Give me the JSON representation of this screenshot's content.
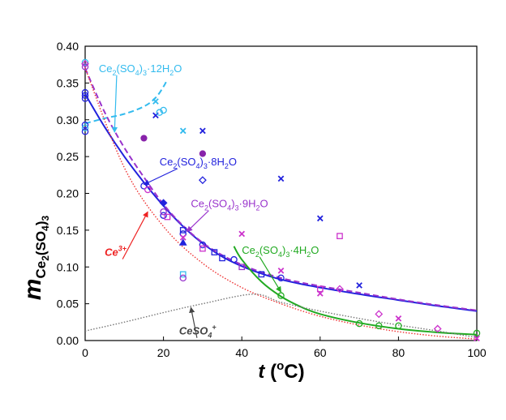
{
  "chart_data": {
    "type": "scatter",
    "xlabel": "t (oC)",
    "xlabel_parts": {
      "main": "t",
      "open": " (",
      "sup": "o",
      "unit": "C)"
    },
    "ylabel_parts": {
      "main": "m",
      "sub1": "Ce",
      "sub2": "2",
      "sub3": "(SO",
      "sub4": "4",
      "sub5": ")",
      "sub6": "3"
    },
    "xlim": [
      0,
      100
    ],
    "ylim": [
      0,
      0.4
    ],
    "xticks": [
      "0",
      "20",
      "40",
      "60",
      "80",
      "100"
    ],
    "yticks": [
      "0.00",
      "0.05",
      "0.10",
      "0.15",
      "0.20",
      "0.25",
      "0.30",
      "0.35",
      "0.40"
    ],
    "grid": false,
    "legend": "none",
    "curves": [
      {
        "id": "12H2O",
        "style": "dashed",
        "color": "#33bbee",
        "x": [
          0,
          5,
          10,
          15,
          18,
          20,
          21
        ],
        "y": [
          0.295,
          0.302,
          0.308,
          0.318,
          0.33,
          0.345,
          0.355
        ]
      },
      {
        "id": "8H2O",
        "style": "solid",
        "color": "#2222dd",
        "x": [
          0,
          5,
          10,
          15,
          20,
          25,
          30,
          35,
          40,
          45,
          50,
          55,
          60,
          70,
          80,
          90,
          100
        ],
        "y": [
          0.335,
          0.29,
          0.25,
          0.215,
          0.183,
          0.155,
          0.132,
          0.114,
          0.101,
          0.091,
          0.083,
          0.077,
          0.072,
          0.063,
          0.055,
          0.047,
          0.04
        ]
      },
      {
        "id": "9H2O",
        "style": "dashed",
        "color": "#9933cc",
        "x": [
          0,
          5,
          10,
          15,
          20,
          25,
          30,
          35,
          40,
          45,
          50,
          55,
          60,
          70,
          80,
          90,
          100
        ],
        "y": [
          0.37,
          0.31,
          0.262,
          0.222,
          0.185,
          0.156,
          0.133,
          0.116,
          0.103,
          0.093,
          0.085,
          0.079,
          0.074,
          0.065,
          0.056,
          0.048,
          0.041
        ]
      },
      {
        "id": "4H2O",
        "style": "solid",
        "color": "#22aa22",
        "x": [
          38,
          40,
          45,
          50,
          55,
          60,
          70,
          80,
          90,
          100
        ],
        "y": [
          0.128,
          0.11,
          0.08,
          0.06,
          0.046,
          0.036,
          0.024,
          0.016,
          0.011,
          0.008
        ]
      },
      {
        "id": "Ce3+",
        "style": "dotted",
        "color": "#ee3333",
        "x": [
          0,
          10,
          20,
          30,
          40,
          50,
          60,
          70,
          80,
          90,
          100
        ],
        "y": [
          0.37,
          0.235,
          0.155,
          0.105,
          0.072,
          0.05,
          0.033,
          0.021,
          0.012,
          0.006,
          0.002
        ]
      },
      {
        "id": "CeSO4+",
        "style": "dotted",
        "color": "#777777",
        "x": [
          0,
          10,
          20,
          30,
          43,
          50,
          60,
          70,
          80,
          90,
          100
        ],
        "y": [
          0.013,
          0.025,
          0.038,
          0.05,
          0.063,
          0.052,
          0.04,
          0.03,
          0.021,
          0.013,
          0.004
        ]
      }
    ],
    "points": [
      {
        "x": 0,
        "y": 0.378,
        "m": "circle",
        "c": "#33bbee"
      },
      {
        "x": 0,
        "y": 0.376,
        "m": "diamond",
        "c": "#cc33cc"
      },
      {
        "x": 0,
        "y": 0.372,
        "m": "circle",
        "c": "#9933cc"
      },
      {
        "x": 0,
        "y": 0.337,
        "m": "circle",
        "c": "#2222dd"
      },
      {
        "x": 0,
        "y": 0.333,
        "m": "circle",
        "c": "#2222dd"
      },
      {
        "x": 0,
        "y": 0.329,
        "m": "circle",
        "c": "#2222dd"
      },
      {
        "x": 0,
        "y": 0.293,
        "m": "circle",
        "c": "#2222dd"
      },
      {
        "x": 0,
        "y": 0.289,
        "m": "circle",
        "c": "#33bbee"
      },
      {
        "x": 0,
        "y": 0.284,
        "m": "circle",
        "c": "#2222dd"
      },
      {
        "x": 15,
        "y": 0.275,
        "m": "dot",
        "c": "#8822aa"
      },
      {
        "x": 18,
        "y": 0.325,
        "m": "x",
        "c": "#33bbee"
      },
      {
        "x": 18,
        "y": 0.306,
        "m": "x",
        "c": "#2222dd"
      },
      {
        "x": 19,
        "y": 0.31,
        "m": "circle",
        "c": "#33bbee"
      },
      {
        "x": 20,
        "y": 0.313,
        "m": "circle",
        "c": "#33bbee"
      },
      {
        "x": 15,
        "y": 0.21,
        "m": "circle",
        "c": "#2222dd"
      },
      {
        "x": 16,
        "y": 0.205,
        "m": "circle",
        "c": "#cc33cc"
      },
      {
        "x": 20,
        "y": 0.187,
        "m": "dot-diamond",
        "c": "#2222dd"
      },
      {
        "x": 20,
        "y": 0.17,
        "m": "circle",
        "c": "#2222dd"
      },
      {
        "x": 21,
        "y": 0.168,
        "m": "square",
        "c": "#cc33cc"
      },
      {
        "x": 20,
        "y": 0.175,
        "m": "circle",
        "c": "#9933cc"
      },
      {
        "x": 25,
        "y": 0.285,
        "m": "x",
        "c": "#33bbee"
      },
      {
        "x": 25,
        "y": 0.15,
        "m": "square",
        "c": "#2222dd"
      },
      {
        "x": 25,
        "y": 0.145,
        "m": "circle",
        "c": "#2222dd"
      },
      {
        "x": 25,
        "y": 0.14,
        "m": "x",
        "c": "#cc33cc"
      },
      {
        "x": 25,
        "y": 0.133,
        "m": "triangle",
        "c": "#2222dd"
      },
      {
        "x": 25,
        "y": 0.09,
        "m": "square",
        "c": "#33bbee"
      },
      {
        "x": 25,
        "y": 0.085,
        "m": "circle",
        "c": "#9933cc"
      },
      {
        "x": 30,
        "y": 0.285,
        "m": "x",
        "c": "#2222dd"
      },
      {
        "x": 30,
        "y": 0.254,
        "m": "dot",
        "c": "#8822aa"
      },
      {
        "x": 30,
        "y": 0.218,
        "m": "diamond",
        "c": "#2222dd"
      },
      {
        "x": 30,
        "y": 0.13,
        "m": "circle",
        "c": "#2222dd"
      },
      {
        "x": 30,
        "y": 0.125,
        "m": "square",
        "c": "#cc33cc"
      },
      {
        "x": 33,
        "y": 0.12,
        "m": "square",
        "c": "#2222dd"
      },
      {
        "x": 35,
        "y": 0.112,
        "m": "square",
        "c": "#2222dd"
      },
      {
        "x": 38,
        "y": 0.11,
        "m": "circle",
        "c": "#2222dd"
      },
      {
        "x": 40,
        "y": 0.1,
        "m": "square",
        "c": "#9933cc"
      },
      {
        "x": 40,
        "y": 0.145,
        "m": "x",
        "c": "#cc33cc"
      },
      {
        "x": 45,
        "y": 0.09,
        "m": "square",
        "c": "#2222dd"
      },
      {
        "x": 50,
        "y": 0.22,
        "m": "x",
        "c": "#2222dd"
      },
      {
        "x": 50,
        "y": 0.095,
        "m": "x",
        "c": "#cc33cc"
      },
      {
        "x": 50,
        "y": 0.085,
        "m": "circle",
        "c": "#2222dd"
      },
      {
        "x": 50,
        "y": 0.061,
        "m": "circle",
        "c": "#22aa22"
      },
      {
        "x": 60,
        "y": 0.166,
        "m": "x",
        "c": "#2222dd"
      },
      {
        "x": 60,
        "y": 0.07,
        "m": "square",
        "c": "#cc33cc"
      },
      {
        "x": 60,
        "y": 0.064,
        "m": "x",
        "c": "#cc33cc"
      },
      {
        "x": 65,
        "y": 0.142,
        "m": "square",
        "c": "#cc33cc"
      },
      {
        "x": 65,
        "y": 0.07,
        "m": "diamond",
        "c": "#cc33cc"
      },
      {
        "x": 70,
        "y": 0.075,
        "m": "x",
        "c": "#2222dd"
      },
      {
        "x": 70,
        "y": 0.023,
        "m": "circle",
        "c": "#22aa22"
      },
      {
        "x": 75,
        "y": 0.036,
        "m": "diamond",
        "c": "#cc33cc"
      },
      {
        "x": 75,
        "y": 0.02,
        "m": "circle",
        "c": "#22aa22"
      },
      {
        "x": 80,
        "y": 0.03,
        "m": "x",
        "c": "#cc33cc"
      },
      {
        "x": 80,
        "y": 0.02,
        "m": "circle",
        "c": "#22aa22"
      },
      {
        "x": 90,
        "y": 0.016,
        "m": "diamond",
        "c": "#cc33cc"
      },
      {
        "x": 100,
        "y": 0.01,
        "m": "circle",
        "c": "#22aa22"
      },
      {
        "x": 100,
        "y": 0.003,
        "m": "x",
        "c": "#cc33cc"
      }
    ],
    "annotations": [
      {
        "id": "anno-12h2o",
        "color": "#33bbee",
        "main": "Ce",
        "parts": [
          [
            "sub",
            "2"
          ],
          [
            "txt",
            "(SO"
          ],
          [
            "sub",
            "4"
          ],
          [
            "txt",
            ")"
          ],
          [
            "sub",
            "3"
          ],
          [
            "txt",
            "·12H"
          ],
          [
            "sub",
            "2"
          ],
          [
            "txt",
            "O"
          ]
        ],
        "ax": 7.5,
        "ay": 0.283,
        "tx": 3.5,
        "ty": 0.365
      },
      {
        "id": "anno-8h2o",
        "color": "#2222dd",
        "main": "Ce",
        "parts": [
          [
            "sub",
            "2"
          ],
          [
            "txt",
            "(SO"
          ],
          [
            "sub",
            "4"
          ],
          [
            "txt",
            ")"
          ],
          [
            "sub",
            "3"
          ],
          [
            "txt",
            "·8H"
          ],
          [
            "sub",
            "2"
          ],
          [
            "txt",
            "O"
          ]
        ],
        "ax": 15,
        "ay": 0.212,
        "tx": 19,
        "ty": 0.238
      },
      {
        "id": "anno-9h2o",
        "color": "#9933cc",
        "main": "Ce",
        "parts": [
          [
            "sub",
            "2"
          ],
          [
            "txt",
            "(SO"
          ],
          [
            "sub",
            "4"
          ],
          [
            "txt",
            ")"
          ],
          [
            "sub",
            "3"
          ],
          [
            "txt",
            "·9H"
          ],
          [
            "sub",
            "2"
          ],
          [
            "txt",
            "O"
          ]
        ],
        "ax": 26,
        "ay": 0.148,
        "tx": 27,
        "ty": 0.181
      },
      {
        "id": "anno-4h2o",
        "color": "#22aa22",
        "main": "Ce",
        "parts": [
          [
            "sub",
            "2"
          ],
          [
            "txt",
            "(SO"
          ],
          [
            "sub",
            "4"
          ],
          [
            "txt",
            ")"
          ],
          [
            "sub",
            "3"
          ],
          [
            "txt",
            "·4H"
          ],
          [
            "sub",
            "2"
          ],
          [
            "txt",
            "O"
          ]
        ],
        "ax": 50,
        "ay": 0.066,
        "tx": 40,
        "ty": 0.118
      },
      {
        "id": "anno-ce3",
        "color": "#ee2222",
        "main": "Ce",
        "parts": [
          [
            "sup",
            "3+"
          ]
        ],
        "ax": 16,
        "ay": 0.175,
        "tx": 5,
        "ty": 0.115,
        "italic": true
      },
      {
        "id": "anno-ceso4",
        "color": "#444444",
        "main": "CeSO",
        "parts": [
          [
            "sub",
            "4"
          ],
          [
            "sup",
            "+"
          ]
        ],
        "ax": 27,
        "ay": 0.045,
        "tx": 24,
        "ty": 0.008,
        "italic": true
      }
    ]
  }
}
